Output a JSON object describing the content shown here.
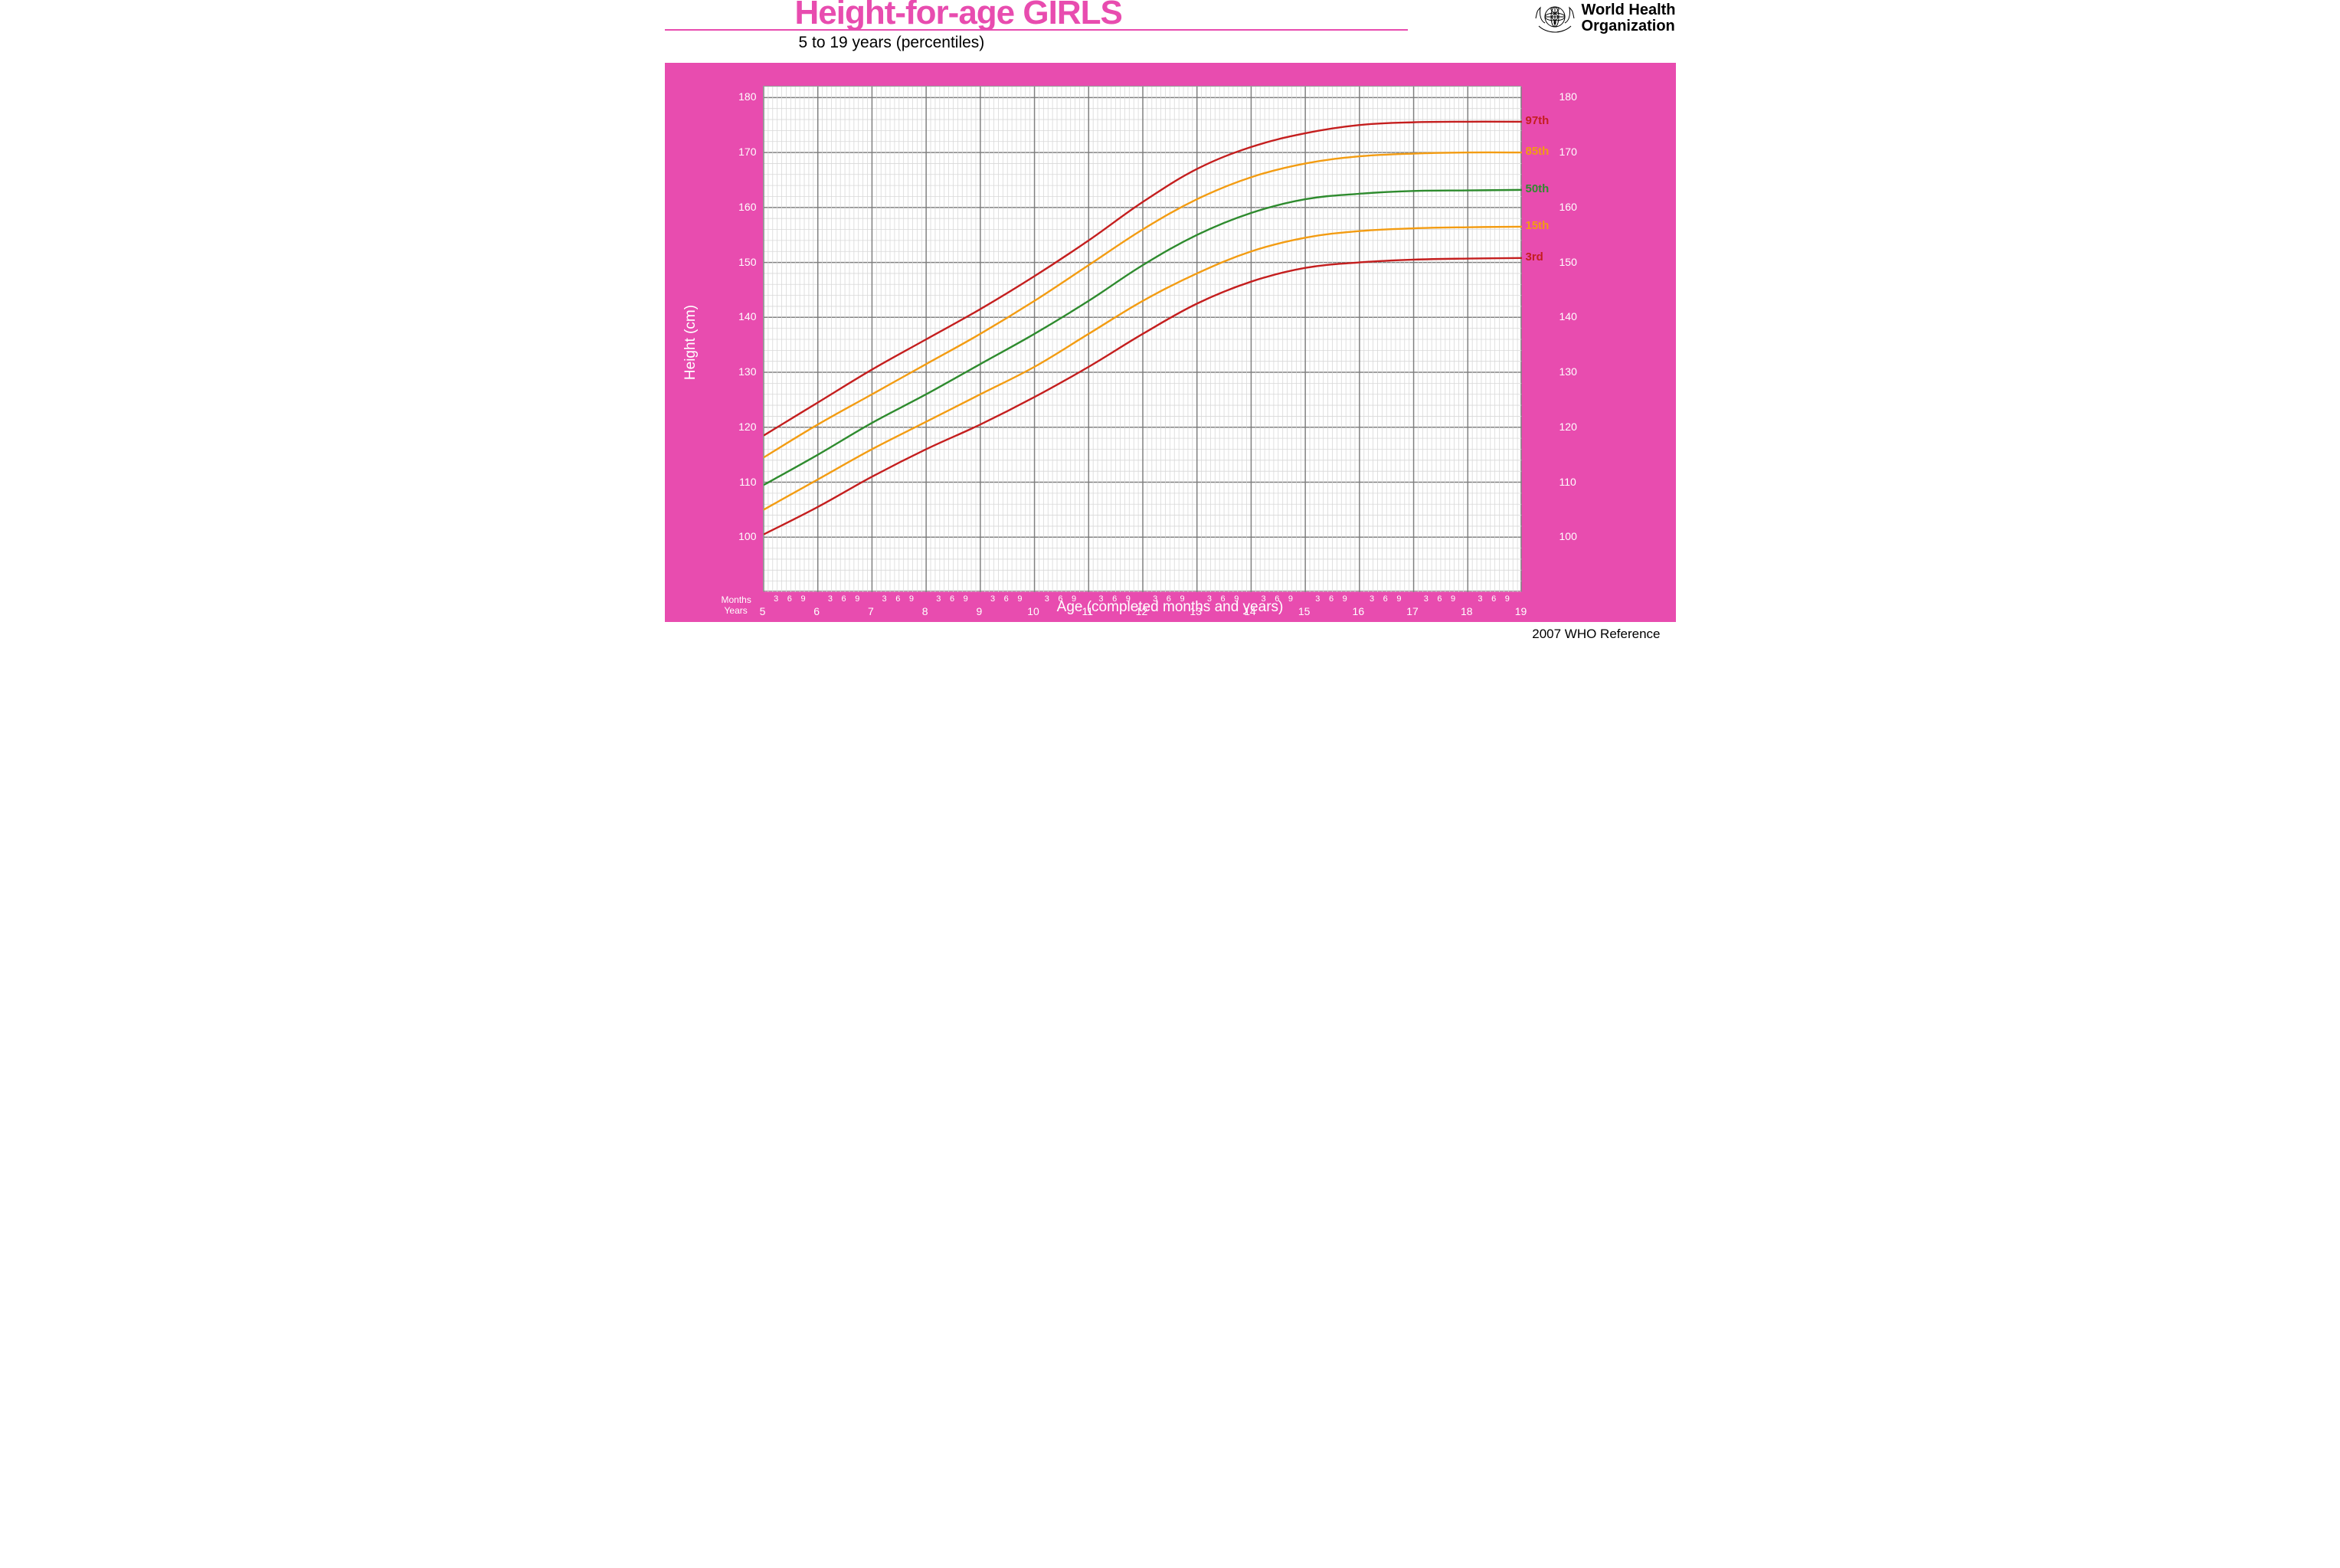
{
  "header": {
    "title": "Height-for-age  GIRLS",
    "title_color": "#e84caf",
    "subtitle": "5 to 19 years (percentiles)",
    "underline_color": "#e84caf",
    "logo_text_line1": "World Health",
    "logo_text_line2": "Organization"
  },
  "chart": {
    "type": "line",
    "panel_bg": "#e84caf",
    "plot_bg": "#ffffff",
    "plot_border_color": "#808080",
    "y_axis": {
      "label": "Height (cm)",
      "min": 90,
      "max": 182,
      "ticks": [
        100,
        110,
        120,
        130,
        140,
        150,
        160,
        170,
        180
      ],
      "tick_color": "#ffffff",
      "label_color": "#ffffff",
      "label_fontsize": 19,
      "tick_fontsize": 14
    },
    "x_axis": {
      "label": "Age (completed months and years)",
      "min": 5,
      "max": 19,
      "year_ticks": [
        5,
        6,
        7,
        8,
        9,
        10,
        11,
        12,
        13,
        14,
        15,
        16,
        17,
        18,
        19
      ],
      "month_sub_ticks": [
        3,
        6,
        9
      ],
      "months_row_label": "Months",
      "years_row_label": "Years",
      "tick_color": "#ffffff",
      "label_color": "#ffffff",
      "label_fontsize": 19,
      "tick_fontsize": 14,
      "month_fontsize": 11
    },
    "grid": {
      "major_color": "#808080",
      "major_width": 1.5,
      "minor_color": "#d8d8d8",
      "minor_width": 0.8,
      "x_minor_per_year": 12,
      "x_major_every_year": true,
      "y_minor_step": 2,
      "y_major_step": 10
    },
    "series": [
      {
        "name": "3rd",
        "label": "3rd",
        "color": "#c41e1e",
        "width": 2.4,
        "points": [
          [
            5,
            100.5
          ],
          [
            6,
            105.5
          ],
          [
            7,
            111
          ],
          [
            8,
            116
          ],
          [
            9,
            120.5
          ],
          [
            10,
            125.5
          ],
          [
            11,
            131
          ],
          [
            12,
            137
          ],
          [
            13,
            142.5
          ],
          [
            14,
            146.5
          ],
          [
            15,
            149
          ],
          [
            16,
            150
          ],
          [
            17,
            150.5
          ],
          [
            18,
            150.7
          ],
          [
            19,
            150.8
          ]
        ]
      },
      {
        "name": "15th",
        "label": "15th",
        "color": "#f39c12",
        "width": 2.4,
        "points": [
          [
            5,
            105
          ],
          [
            6,
            110.5
          ],
          [
            7,
            116
          ],
          [
            8,
            121
          ],
          [
            9,
            126
          ],
          [
            10,
            131
          ],
          [
            11,
            137
          ],
          [
            12,
            143
          ],
          [
            13,
            148
          ],
          [
            14,
            152
          ],
          [
            15,
            154.5
          ],
          [
            16,
            155.7
          ],
          [
            17,
            156.2
          ],
          [
            18,
            156.4
          ],
          [
            19,
            156.5
          ]
        ]
      },
      {
        "name": "50th",
        "label": "50th",
        "color": "#2e8b2e",
        "width": 2.4,
        "points": [
          [
            5,
            109.5
          ],
          [
            6,
            115
          ],
          [
            7,
            120.8
          ],
          [
            8,
            126
          ],
          [
            9,
            131.5
          ],
          [
            10,
            137
          ],
          [
            11,
            143
          ],
          [
            12,
            149.5
          ],
          [
            13,
            155
          ],
          [
            14,
            159
          ],
          [
            15,
            161.5
          ],
          [
            16,
            162.5
          ],
          [
            17,
            163
          ],
          [
            18,
            163.1
          ],
          [
            19,
            163.2
          ]
        ]
      },
      {
        "name": "85th",
        "label": "85th",
        "color": "#f39c12",
        "width": 2.4,
        "points": [
          [
            5,
            114.5
          ],
          [
            6,
            120.5
          ],
          [
            7,
            126
          ],
          [
            8,
            131.5
          ],
          [
            9,
            137
          ],
          [
            10,
            143
          ],
          [
            11,
            149.5
          ],
          [
            12,
            156
          ],
          [
            13,
            161.5
          ],
          [
            14,
            165.5
          ],
          [
            15,
            168
          ],
          [
            16,
            169.3
          ],
          [
            17,
            169.8
          ],
          [
            18,
            170
          ],
          [
            19,
            170
          ]
        ]
      },
      {
        "name": "97th",
        "label": "97th",
        "color": "#c41e1e",
        "width": 2.4,
        "points": [
          [
            5,
            118.5
          ],
          [
            6,
            124.5
          ],
          [
            7,
            130.5
          ],
          [
            8,
            136
          ],
          [
            9,
            141.5
          ],
          [
            10,
            147.5
          ],
          [
            11,
            154
          ],
          [
            12,
            161
          ],
          [
            13,
            167
          ],
          [
            14,
            171
          ],
          [
            15,
            173.5
          ],
          [
            16,
            175
          ],
          [
            17,
            175.5
          ],
          [
            18,
            175.6
          ],
          [
            19,
            175.6
          ]
        ]
      }
    ]
  },
  "footer": {
    "note": "2007 WHO Reference",
    "fontsize": 17
  }
}
